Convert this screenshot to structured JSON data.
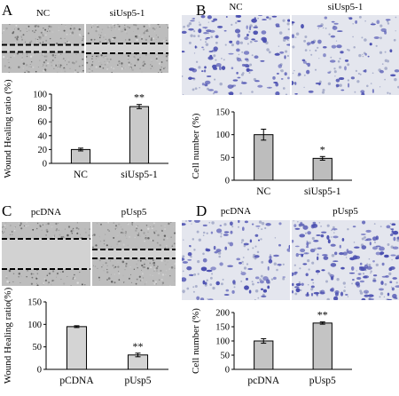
{
  "panels": [
    {
      "label": "A",
      "image_labels": [
        "NC",
        "siUsp5-1"
      ],
      "chart_data": {
        "type": "bar",
        "categories": [
          "NC",
          "siUsp5-1"
        ],
        "values": [
          20,
          82
        ],
        "errors": [
          2,
          3
        ],
        "significance": [
          "",
          "**"
        ],
        "ylabel": "Wound Healing ratio (%)",
        "ylim": [
          0,
          100
        ],
        "yticks": [
          0,
          20,
          40,
          60,
          80,
          100
        ],
        "bar_color": "#c9c9c9"
      }
    },
    {
      "label": "B",
      "image_labels": [
        "NC",
        "siUsp5-1"
      ],
      "chart_data": {
        "type": "bar",
        "categories": [
          "NC",
          "siUsp5-1"
        ],
        "values": [
          100,
          48
        ],
        "errors": [
          12,
          4
        ],
        "significance": [
          "",
          "*"
        ],
        "ylabel": "Cell number  (%)",
        "ylim": [
          0,
          150
        ],
        "yticks": [
          0,
          50,
          100,
          150
        ],
        "bar_color": "#bdbdbd"
      }
    },
    {
      "label": "C",
      "image_labels": [
        "pcDNA",
        "pUsp5"
      ],
      "chart_data": {
        "type": "bar",
        "categories": [
          "pCDNA",
          "pUsp5"
        ],
        "values": [
          95,
          32
        ],
        "errors": [
          2,
          4
        ],
        "significance": [
          "",
          "**"
        ],
        "ylabel": "Wound Healing ratio(%)",
        "ylim": [
          0,
          150
        ],
        "yticks": [
          0,
          50,
          100,
          150
        ],
        "bar_color": "#d4d4d4"
      }
    },
    {
      "label": "D",
      "image_labels": [
        "pcDNA",
        "pUsp5"
      ],
      "chart_data": {
        "type": "bar",
        "categories": [
          "pcDNA",
          "pUsp5"
        ],
        "values": [
          100,
          163
        ],
        "errors": [
          8,
          4
        ],
        "significance": [
          "",
          "**"
        ],
        "ylabel": "Cell number  (%)",
        "ylim": [
          0,
          200
        ],
        "yticks": [
          0,
          50,
          100,
          150,
          200
        ],
        "bar_color": "#c4c4c4"
      }
    }
  ],
  "colors": {
    "wound_background": "#bdbdbd",
    "wound_dashes": "#000000",
    "stain_background": "#e4e6ee",
    "stain_cells": "#4a4fb0"
  }
}
